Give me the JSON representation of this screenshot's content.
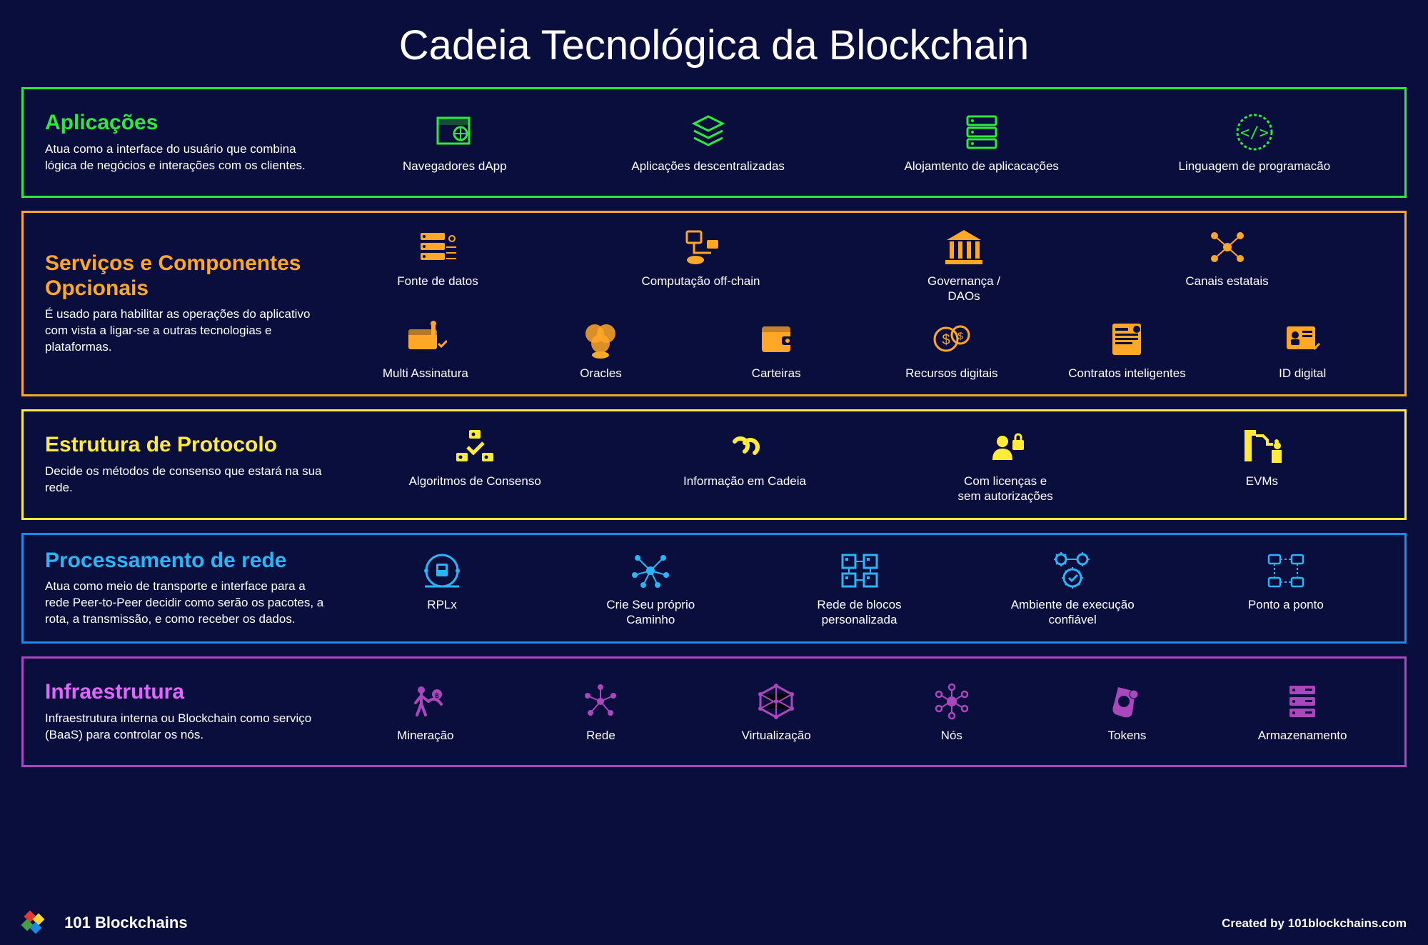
{
  "title": "Cadeia Tecnológica da Blockchain",
  "background_color": "#0a0e3d",
  "text_color": "#ffffff",
  "title_fontsize": 58,
  "layer_title_fontsize": 30,
  "layer_desc_fontsize": 17,
  "item_label_fontsize": 17,
  "layers": [
    {
      "id": "aplicacoes",
      "title": "Aplicações",
      "title_color": "#2ee83c",
      "border_color": "#2ee83c",
      "icon_color": "#2ee83c",
      "desc": "Atua como a interface do usuário que combina lógica de negócios e interações com os clientes.",
      "items": [
        {
          "label": "Navegadores dApp",
          "icon": "browser"
        },
        {
          "label": "Aplicações descentralizadas",
          "icon": "stack"
        },
        {
          "label": "Alojamtento de aplicacações",
          "icon": "server"
        },
        {
          "label": "Linguagem de programacão",
          "icon": "code"
        }
      ]
    },
    {
      "id": "servicos",
      "title": "Serviços e Componentes Opcionais",
      "title_color": "#ffa726",
      "border_color": "#ffa726",
      "icon_color": "#ffa726",
      "desc": "É usado para habilitar as operações do aplicativo com vista a ligar-se a outras tecnologias e plataformas.",
      "items": [
        {
          "label": "Fonte de datos",
          "icon": "datasource"
        },
        {
          "label": "Computação off-chain",
          "icon": "offchain"
        },
        {
          "label": "Governança /\nDAOs",
          "icon": "governance"
        },
        {
          "label": "Canais estatais",
          "icon": "channels"
        },
        {
          "label": "Multi Assinatura",
          "icon": "multisig"
        },
        {
          "label": "Oracles",
          "icon": "oracles"
        },
        {
          "label": "Carteiras",
          "icon": "wallet"
        },
        {
          "label": "Recursos digitais",
          "icon": "assets"
        },
        {
          "label": "Contratos inteligentes",
          "icon": "smartcontract"
        },
        {
          "label": "ID digital",
          "icon": "digitalid"
        }
      ]
    },
    {
      "id": "protocolo",
      "title": "Estrutura de Protocolo",
      "title_color": "#ffeb3b",
      "border_color": "#ffeb3b",
      "icon_color": "#ffeb3b",
      "desc": "Decide os métodos de consenso que estará na sua rede.",
      "items": [
        {
          "label": "Algoritmos de Consenso",
          "icon": "consensus"
        },
        {
          "label": "Informação em Cadeia",
          "icon": "chain"
        },
        {
          "label": "Com licenças e\nsem autorizações",
          "icon": "permission"
        },
        {
          "label": "EVMs",
          "icon": "evm"
        }
      ]
    },
    {
      "id": "rede",
      "title": "Processamento de rede",
      "title_color": "#29b6f6",
      "border_color": "#1e88e5",
      "icon_color": "#29b6f6",
      "desc": "Atua como meio de transporte e interface para a rede Peer-to-Peer decidir como serão os pacotes, a rota, a transmissão, e como receber os dados.",
      "items": [
        {
          "label": "RPLx",
          "icon": "rplx"
        },
        {
          "label": "Crie Seu próprio\nCaminho",
          "icon": "roll"
        },
        {
          "label": "Rede de blocos\npersonalizada",
          "icon": "blocknet"
        },
        {
          "label": "Ambiente de execução\nconfiável",
          "icon": "trusted"
        },
        {
          "label": "Ponto a ponto",
          "icon": "p2p"
        }
      ]
    },
    {
      "id": "infra",
      "title": "Infraestrutura",
      "title_color": "#e166ff",
      "border_color": "#ab47bc",
      "icon_color": "#ab47bc",
      "desc": "Infraestrutura interna ou Blockchain como serviço (BaaS) para controlar os nós.",
      "items": [
        {
          "label": "Mineração",
          "icon": "mining"
        },
        {
          "label": "Rede",
          "icon": "network"
        },
        {
          "label": "Virtualização",
          "icon": "virtual"
        },
        {
          "label": "Nós",
          "icon": "nodes"
        },
        {
          "label": "Tokens",
          "icon": "tokens"
        },
        {
          "label": "Armazenamento",
          "icon": "storage"
        }
      ]
    }
  ],
  "footer": {
    "brand": "101 Blockchains",
    "created": "Created by 101blockchains.com",
    "logo_colors": [
      "#e53935",
      "#fdd835",
      "#43a047",
      "#1e88e5"
    ]
  }
}
